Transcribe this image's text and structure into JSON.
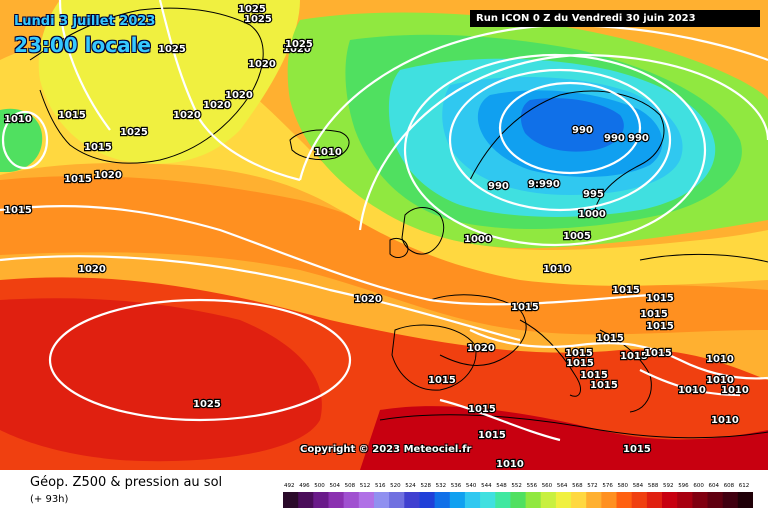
{
  "header": {
    "date": "Lundi 3 juillet 2023",
    "time": "23:00 locale",
    "run_info": "Run ICON 0 Z du Vendredi 30 juin 2023"
  },
  "copyright": "Copyright © 2023 Meteociel.fr",
  "footer": {
    "title": "Géop. Z500 & pression au sol",
    "lead": "(+ 93h)"
  },
  "legend": {
    "levels": [
      "492",
      "496",
      "500",
      "504",
      "508",
      "512",
      "516",
      "520",
      "524",
      "528",
      "532",
      "536",
      "540",
      "544",
      "548",
      "552",
      "556",
      "560",
      "564",
      "568",
      "572",
      "576",
      "580",
      "584",
      "588",
      "592",
      "596",
      "600",
      "604",
      "608",
      "612"
    ],
    "colors": [
      "#2a0a2a",
      "#4a0d5a",
      "#6a1a8a",
      "#8a30b0",
      "#a050d0",
      "#b070e6",
      "#9090f0",
      "#7070e0",
      "#4040d0",
      "#2040d8",
      "#1070e8",
      "#10a0f0",
      "#30c8f0",
      "#40e0e0",
      "#40e8a0",
      "#50e060",
      "#90e840",
      "#c8f040",
      "#f0f040",
      "#ffd840",
      "#ffb030",
      "#ff9020",
      "#ff6010",
      "#f04010",
      "#e02010",
      "#c80010",
      "#a80010",
      "#800010",
      "#600010",
      "#400010",
      "#200008"
    ]
  },
  "map_colors": {
    "sea_background": "#ffb030",
    "low_core": "#40a0ff",
    "high_core": "#f03018",
    "isobar": "#ffffff",
    "coastline": "#000000"
  },
  "isobar_labels": [
    "1025",
    "1025",
    "1025",
    "1020",
    "1025",
    "1020",
    "1020",
    "1020",
    "1020",
    "1010",
    "1015",
    "1025",
    "1015",
    "1020",
    "1015",
    "1015",
    "1010",
    "1020",
    "1020",
    "990",
    "990",
    "990",
    "990",
    "9:990",
    "995",
    "1000",
    "1000",
    "1005",
    "1010",
    "1015",
    "1015",
    "1015",
    "1015",
    "1015",
    "1015",
    "1015",
    "1015",
    "1015",
    "1015",
    "1015",
    "1015",
    "1020",
    "1010",
    "1010",
    "1010",
    "1010",
    "1010",
    "1025",
    "1015",
    "1015",
    "1015",
    "1010",
    "1015"
  ]
}
